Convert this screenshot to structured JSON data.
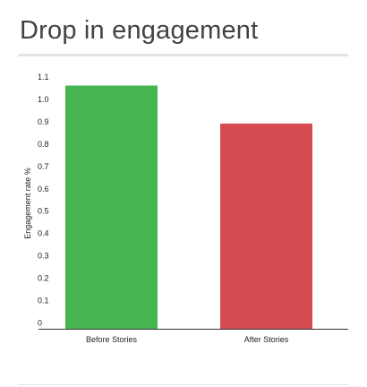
{
  "chart_data": {
    "type": "bar",
    "title": "Drop in engagement",
    "xlabel": "",
    "ylabel": "Engagement rate %",
    "categories": [
      "Before Stories",
      "After Stories"
    ],
    "values": [
      1.09,
      0.92
    ],
    "colors": [
      "#48b553",
      "#d44c51"
    ],
    "ylim": [
      0,
      1.1
    ],
    "yticks": [
      "0",
      "0.1",
      "0.2",
      "0.3",
      "0.4",
      "0.5",
      "0.6",
      "0.7",
      "0.8",
      "0.9",
      "1.0",
      "1.1"
    ],
    "grid": false,
    "legend": "none"
  }
}
